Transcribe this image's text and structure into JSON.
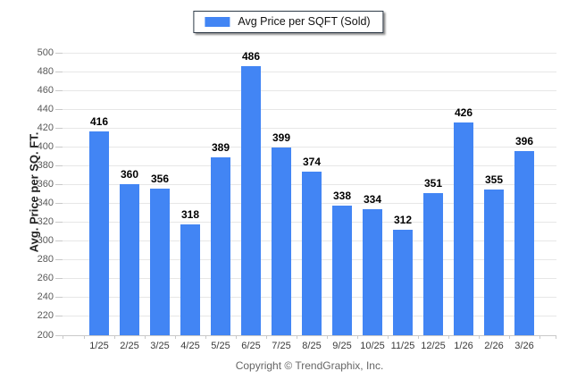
{
  "legend": {
    "label": "Avg Price per SQFT (Sold)"
  },
  "footer": {
    "text": "Copyright © TrendGraphix, Inc."
  },
  "colors": {
    "bar": "#4285f4",
    "grid": "#e7e7e7",
    "axis": "#c9c9c9",
    "y_tick_label": "#595959",
    "x_tick_label": "#3a3a3a",
    "value_label": "#000000",
    "legend_border": "#2e3a47",
    "footer_text": "#666666"
  },
  "chart_data": {
    "type": "bar",
    "title": "",
    "series_name": "Avg Price per SQFT (Sold)",
    "categories": [
      "1/25",
      "2/25",
      "3/25",
      "4/25",
      "5/25",
      "6/25",
      "7/25",
      "8/25",
      "9/25",
      "10/25",
      "11/25",
      "12/25",
      "1/26",
      "2/26",
      "3/26"
    ],
    "values": [
      416,
      360,
      356,
      318,
      389,
      486,
      399,
      374,
      338,
      334,
      312,
      351,
      426,
      355,
      396
    ],
    "xlabel": "",
    "ylabel": "Avg. Price per SQ. FT.",
    "ylim": [
      200,
      500
    ],
    "ytick_step": 20,
    "grid": true,
    "legend_position": "top",
    "bar_labels": true
  }
}
